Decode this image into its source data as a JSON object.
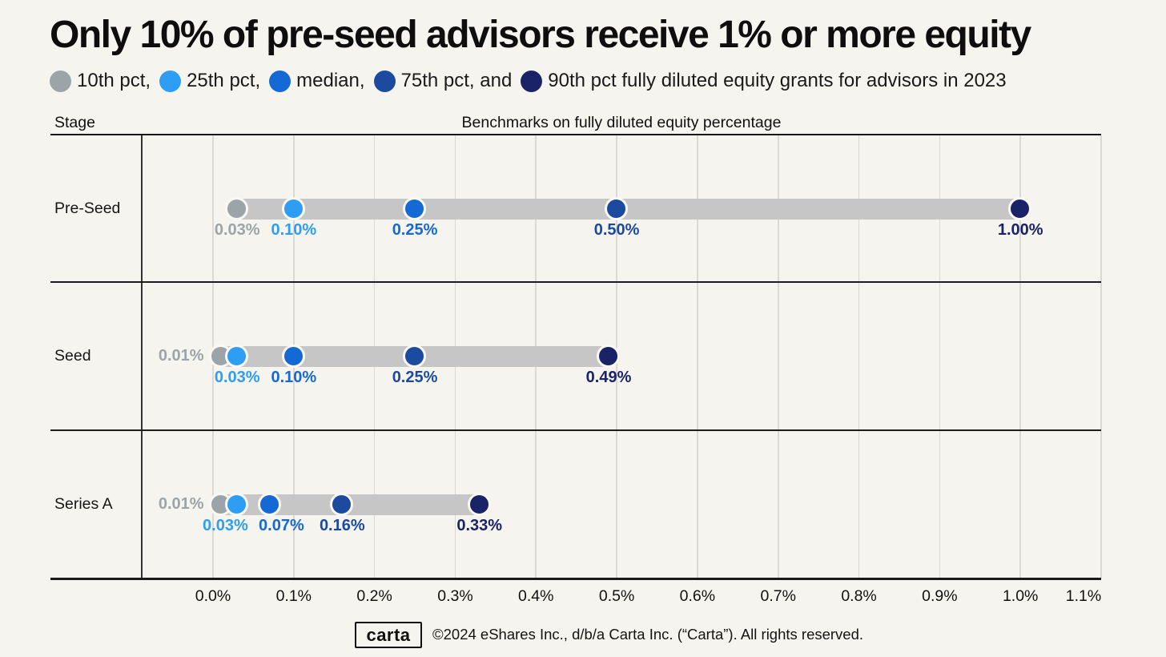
{
  "header": {
    "title": "Only 10% of pre-seed advisors receive 1% or more equity",
    "legend_items": [
      {
        "name": "10th-percentile",
        "label": "10th pct,",
        "color": "#9ba5a9"
      },
      {
        "name": "25th-percentile",
        "label": "25th pct,",
        "color": "#2d9ef3"
      },
      {
        "name": "median",
        "label": "median,",
        "color": "#1569d4"
      },
      {
        "name": "75th-percentile",
        "label": "75th pct, and",
        "color": "#1b4a9e"
      },
      {
        "name": "90th-percentile",
        "label": "90th pct fully diluted equity grants for advisors in 2023",
        "color": "#1b2368"
      }
    ]
  },
  "table_headers": {
    "stage": "Stage",
    "benchmarks": "Benchmarks on fully diluted equity percentage"
  },
  "chart_data": {
    "type": "dumbbell",
    "title": "Only 10% of pre-seed advisors receive 1% or more equity",
    "percentiles": [
      "10th pct",
      "25th pct",
      "median",
      "75th pct",
      "90th pct"
    ],
    "series_colors": [
      "#9ba5a9",
      "#2d9ef3",
      "#1569d4",
      "#1b4a9e",
      "#1b2368"
    ],
    "bar_color": "#c6c6c7",
    "grid": true,
    "xlim": [
      0.0,
      1.1
    ],
    "x_unit": "% fully diluted equity",
    "rows": [
      {
        "stage": "Pre-Seed",
        "values_pct": [
          0.03,
          0.1,
          0.25,
          0.5,
          1.0
        ],
        "labels": [
          "0.03%",
          "0.10%",
          "0.25%",
          "0.50%",
          "1.00%"
        ],
        "first_label_left": false
      },
      {
        "stage": "Seed",
        "values_pct": [
          0.01,
          0.03,
          0.1,
          0.25,
          0.49
        ],
        "labels": [
          "0.01%",
          "0.03%",
          "0.10%",
          "0.25%",
          "0.49%"
        ],
        "first_label_left": true
      },
      {
        "stage": "Series A",
        "values_pct": [
          0.01,
          0.03,
          0.07,
          0.16,
          0.33
        ],
        "labels": [
          "0.01%",
          "0.03%",
          "0.07%",
          "0.16%",
          "0.33%"
        ],
        "first_label_left": true
      }
    ],
    "x_ticks": {
      "values": [
        0.0,
        0.1,
        0.2,
        0.3,
        0.4,
        0.5,
        0.6,
        0.7,
        0.8,
        0.9,
        1.0,
        1.1
      ],
      "labels": [
        "0.0%",
        "0.1%",
        "0.2%",
        "0.3%",
        "0.4%",
        "0.5%",
        "0.6%",
        "0.7%",
        "0.8%",
        "0.9%",
        "1.0%",
        "1.1%"
      ]
    }
  },
  "footer": {
    "logo_text": "carta",
    "copyright": "©2024 eShares Inc., d/b/a Carta Inc. (“Carta”). All rights reserved."
  }
}
